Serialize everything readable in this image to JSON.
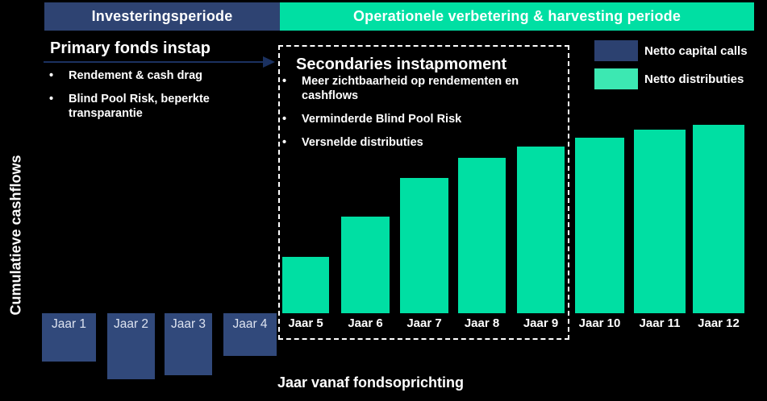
{
  "header": {
    "investment": {
      "label": "Investeringsperiode",
      "color": "#2E4372",
      "text_color": "#FFFFFF"
    },
    "harvesting": {
      "label": "Operationele verbetering & harvesting periode",
      "color": "#00DFA3",
      "text_color": "#FFFFFF"
    }
  },
  "primary_panel": {
    "title": "Primary fonds instap",
    "bullets": [
      "Rendement & cash drag",
      "Blind Pool Risk, beperkte transparantie"
    ],
    "arrow_color": "#1B3160"
  },
  "secondaries_panel": {
    "title": "Secondaries instapmoment",
    "bullets": [
      "Meer zichtbaarheid op rendementen en cashflows",
      "Verminderde Blind Pool Risk",
      "Versnelde distributies"
    ]
  },
  "legend": {
    "items": [
      {
        "label": "Netto capital calls",
        "color": "#2C4170"
      },
      {
        "label": "Netto distributies",
        "color": "#3CE8B2"
      }
    ]
  },
  "chart_data": {
    "type": "bar",
    "title": "",
    "xlabel": "Jaar vanaf fondsoprichting",
    "ylabel": "Cumulatieve cashflows",
    "categories": [
      "Jaar 1",
      "Jaar 2",
      "Jaar 3",
      "Jaar 4",
      "Jaar 5",
      "Jaar 6",
      "Jaar 7",
      "Jaar 8",
      "Jaar 9",
      "Jaar 10",
      "Jaar 11",
      "Jaar 12"
    ],
    "series": [
      {
        "name": "Netto capital calls",
        "color": "#31497B",
        "values": [
          -60,
          -82,
          -77,
          -53,
          null,
          null,
          null,
          null,
          null,
          null,
          null,
          null
        ]
      },
      {
        "name": "Netto distributies",
        "color": "#00DFA3",
        "values": [
          null,
          null,
          null,
          null,
          70,
          120,
          168,
          193,
          207,
          218,
          228,
          234
        ]
      }
    ],
    "value_units": "relative (no numeric axis shown)",
    "grid": false,
    "legend_position": "top-right"
  }
}
